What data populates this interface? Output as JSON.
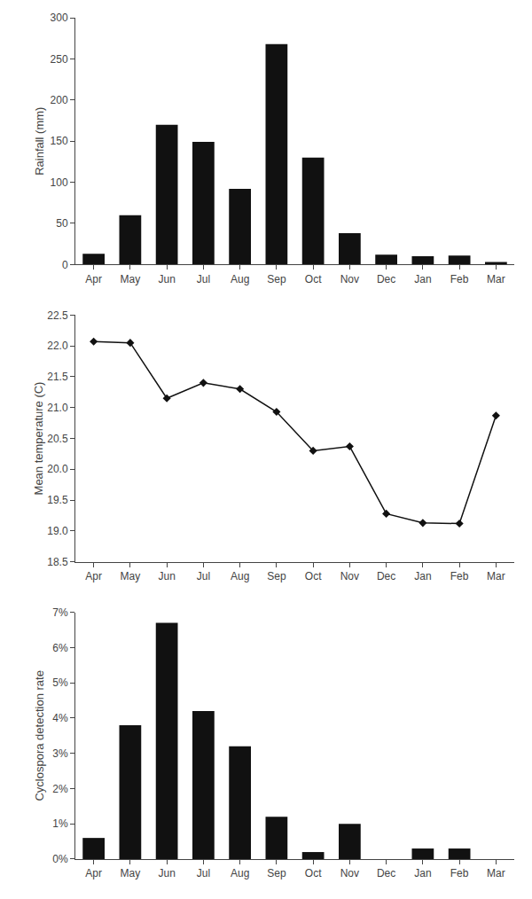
{
  "chart_data": [
    {
      "type": "bar",
      "categories": [
        "Apr",
        "May",
        "Jun",
        "Jul",
        "Aug",
        "Sep",
        "Oct",
        "Nov",
        "Dec",
        "Jan",
        "Feb",
        "Mar"
      ],
      "values": [
        13,
        60,
        170,
        149,
        92,
        268,
        130,
        38,
        12,
        10,
        11,
        3
      ],
      "color": "#111111",
      "ylabel": "Rainfall (mm)",
      "ylim": [
        0,
        300
      ],
      "yticks": [
        0,
        50,
        100,
        150,
        200,
        250,
        300
      ],
      "grid": false
    },
    {
      "type": "line",
      "categories": [
        "Apr",
        "May",
        "Jun",
        "Jul",
        "Aug",
        "Sep",
        "Oct",
        "Nov",
        "Dec",
        "Jan",
        "Feb",
        "Mar"
      ],
      "values": [
        22.07,
        22.05,
        21.15,
        21.4,
        21.3,
        20.93,
        20.3,
        20.37,
        19.28,
        19.13,
        19.12,
        20.87
      ],
      "color": "#111111",
      "marker": "diamond",
      "line_style": "solid",
      "ylabel": "Mean temperature (C)",
      "ylim": [
        18.5,
        22.5
      ],
      "yticks": [
        18.5,
        {
          "value": 19.0,
          "label": "19.0"
        },
        19.5,
        {
          "value": 20.0,
          "label": "20.0"
        },
        20.5,
        {
          "value": 21.0,
          "label": "21.0"
        },
        21.5,
        {
          "value": 22.0,
          "label": "22.0"
        },
        22.5
      ],
      "grid": false
    },
    {
      "type": "bar",
      "categories": [
        "Apr",
        "May",
        "Jun",
        "Jul",
        "Aug",
        "Sep",
        "Oct",
        "Nov",
        "Dec",
        "Jan",
        "Feb",
        "Mar"
      ],
      "values": [
        0.006,
        0.038,
        0.067,
        0.042,
        0.032,
        0.012,
        0.002,
        0.01,
        0.0,
        0.003,
        0.003,
        0.0
      ],
      "color": "#111111",
      "ylabel": "Cyclospora detection rate",
      "ylim": [
        0,
        0.07
      ],
      "yticks": [
        {
          "value": 0,
          "label": "0%"
        },
        {
          "value": 0.01,
          "label": "1%"
        },
        {
          "value": 0.02,
          "label": "2%"
        },
        {
          "value": 0.03,
          "label": "3%"
        },
        {
          "value": 0.04,
          "label": "4%"
        },
        {
          "value": 0.05,
          "label": "5%"
        },
        {
          "value": 0.06,
          "label": "6%"
        },
        {
          "value": 0.07,
          "label": "7%"
        }
      ],
      "grid": false
    }
  ]
}
